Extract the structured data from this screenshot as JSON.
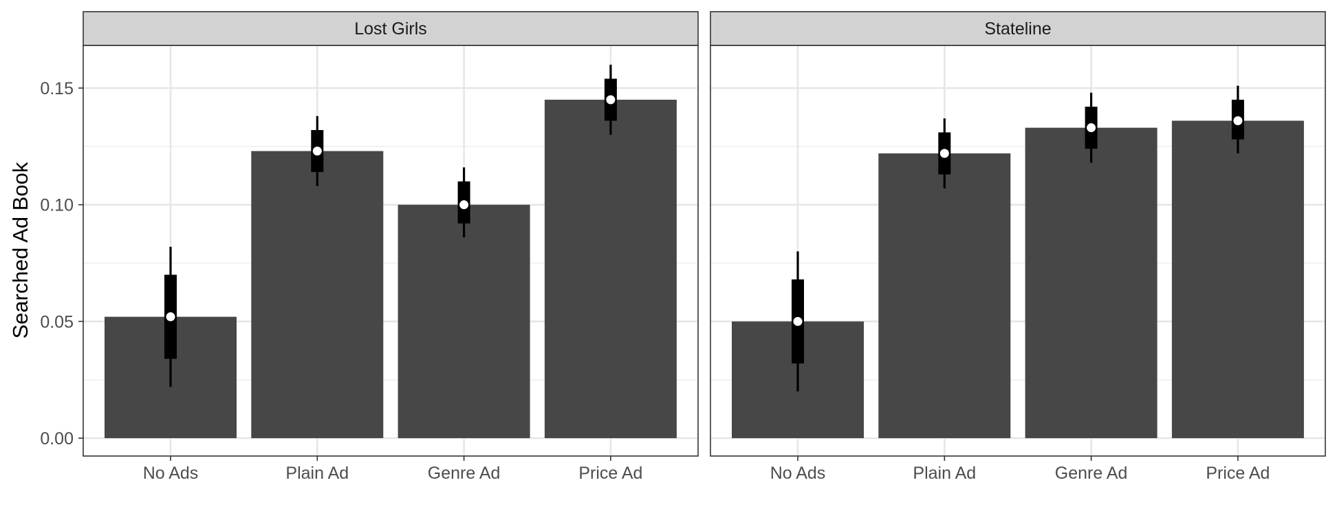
{
  "chart_data": {
    "type": "bar",
    "ylabel": "Searched Ad Book",
    "xlabel": "",
    "ylim": [
      -0.008,
      0.168
    ],
    "y_ticks": [
      0.0,
      0.05,
      0.1,
      0.15
    ],
    "y_tick_labels": [
      "0.00",
      "0.05",
      "0.10",
      "0.15"
    ],
    "grid": true,
    "bar_color": "#474747",
    "interval_color": "#000000",
    "point_color": "#ffffff",
    "strip_color": "#d2d2d2",
    "categories": [
      "No Ads",
      "Plain Ad",
      "Genre Ad",
      "Price Ad"
    ],
    "panels": [
      {
        "title": "Lost Girls",
        "values": [
          0.052,
          0.123,
          0.1,
          0.145
        ],
        "inner_interval": [
          [
            0.034,
            0.07
          ],
          [
            0.114,
            0.132
          ],
          [
            0.092,
            0.11
          ],
          [
            0.136,
            0.154
          ]
        ],
        "outer_interval": [
          [
            0.022,
            0.082
          ],
          [
            0.108,
            0.138
          ],
          [
            0.086,
            0.116
          ],
          [
            0.13,
            0.16
          ]
        ]
      },
      {
        "title": "Stateline",
        "values": [
          0.05,
          0.122,
          0.133,
          0.136
        ],
        "inner_interval": [
          [
            0.032,
            0.068
          ],
          [
            0.113,
            0.131
          ],
          [
            0.124,
            0.142
          ],
          [
            0.128,
            0.145
          ]
        ],
        "outer_interval": [
          [
            0.02,
            0.08
          ],
          [
            0.107,
            0.137
          ],
          [
            0.118,
            0.148
          ],
          [
            0.122,
            0.151
          ]
        ]
      }
    ]
  }
}
